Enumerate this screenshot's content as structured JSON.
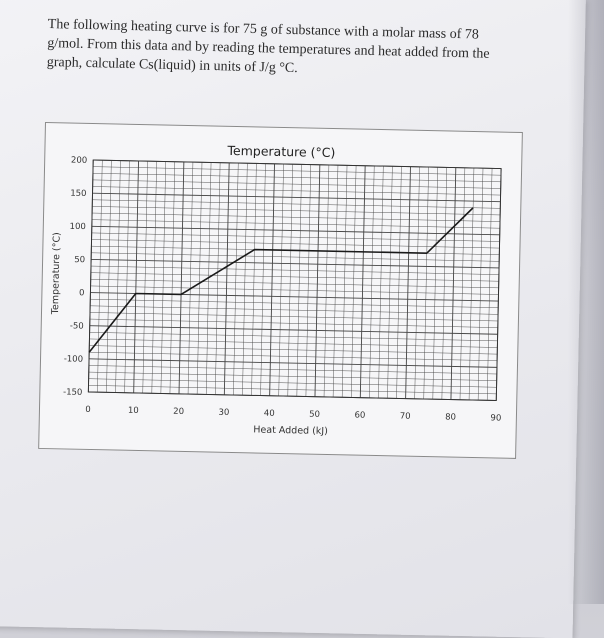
{
  "question": {
    "text": "The following heating curve is for 75 g of substance with a molar mass of 78 g/mol. From this data and by reading the temperatures and heat added from the graph, calculate Cs(liquid) in units of J/g °C."
  },
  "chart_data": {
    "type": "line",
    "title": "Temperature (°C)",
    "xlabel": "Heat Added (kJ)",
    "ylabel": "Temperature (°C)",
    "xlim": [
      0,
      90
    ],
    "ylim": [
      -150,
      200
    ],
    "x_ticks": [
      0,
      10,
      20,
      30,
      40,
      50,
      60,
      70,
      80,
      90
    ],
    "y_ticks": [
      200,
      150,
      100,
      50,
      0,
      -50,
      -100,
      -150
    ],
    "grid": true,
    "series": [
      {
        "x": [
          0,
          10,
          20,
          36,
          74,
          84
        ],
        "y": [
          -90,
          0,
          0,
          70,
          70,
          140
        ]
      }
    ],
    "colors": {
      "line": "#1a1a1a",
      "grid": "#444444",
      "tick_text": "#333333"
    }
  }
}
